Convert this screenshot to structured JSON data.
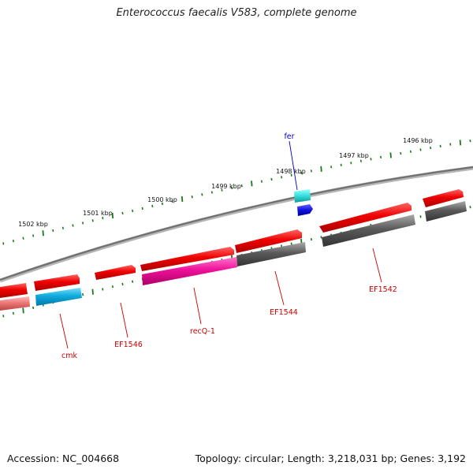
{
  "title": "Enterococcus faecalis V583, complete genome",
  "footer": {
    "accession": "Accession: NC_004668",
    "summary": "Topology: circular; Length: 3,218,031 bp; Genes: 3,192"
  },
  "scale_labels": [
    "1496 kbp",
    "1497 kbp",
    "1498 kbp",
    "1499 kbp",
    "1500 kbp",
    "1501 kbp",
    "1502 kbp"
  ],
  "gene_labels": [
    {
      "text": "fer",
      "color": "#0000cc"
    },
    {
      "text": "EF1542",
      "color": "#cc0000"
    },
    {
      "text": "EF1544",
      "color": "#cc0000"
    },
    {
      "text": "recQ-1",
      "color": "#cc0000"
    },
    {
      "text": "EF1546",
      "color": "#cc0000"
    },
    {
      "text": "cmk",
      "color": "#cc0000"
    }
  ],
  "colors": {
    "backbone": "#808080",
    "scale_ticks": "#1a7a1a",
    "gene_red": "#ee1111",
    "gene_grey": "#666666",
    "gene_cyan": "#11bbee",
    "gene_magenta": "#ee1199",
    "gene_pink": "#ee7777",
    "gene_blue": "#1111dd",
    "gene_teal": "#33dddd"
  }
}
